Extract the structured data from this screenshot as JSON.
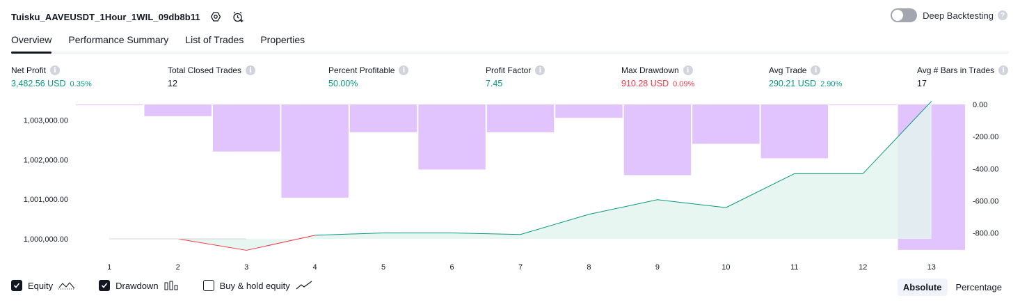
{
  "header": {
    "title": "Tuisku_AAVEUSDT_1Hour_1WIL_09db8b11",
    "settings_icon": "hexagon-gear-icon",
    "alert_icon": "alarm-clock-plus-icon"
  },
  "deep_backtesting": {
    "label": "Deep Backtesting",
    "enabled": false
  },
  "tabs": [
    {
      "label": "Overview",
      "active": true
    },
    {
      "label": "Performance Summary",
      "active": false
    },
    {
      "label": "List of Trades",
      "active": false
    },
    {
      "label": "Properties",
      "active": false
    }
  ],
  "stats": {
    "net_profit": {
      "label": "Net Profit",
      "value": "3,482.56 USD",
      "pct": "0.35%"
    },
    "total_closed_trades": {
      "label": "Total Closed Trades",
      "value": "12"
    },
    "percent_profitable": {
      "label": "Percent Profitable",
      "value": "50.00%"
    },
    "profit_factor": {
      "label": "Profit Factor",
      "value": "7.45"
    },
    "max_drawdown": {
      "label": "Max Drawdown",
      "value": "910.28 USD",
      "pct": "0.09%"
    },
    "avg_trade": {
      "label": "Avg Trade",
      "value": "290.21 USD",
      "pct": "2.90%"
    },
    "avg_bars": {
      "label": "Avg # Bars in Trades",
      "value": "17"
    }
  },
  "colors": {
    "profit": "#089981",
    "loss": "#f23645",
    "drawdown_bar": "#e1c3fd",
    "equity_fill": "#e3f5ef",
    "text": "#131722"
  },
  "chart_data": {
    "type": "line+bar",
    "x": [
      "1",
      "2",
      "3",
      "4",
      "5",
      "6",
      "7",
      "8",
      "9",
      "10",
      "11",
      "12",
      "13"
    ],
    "equity_ylim": [
      999700,
      1003400
    ],
    "equity_yticks": [
      "1,000,000.00",
      "1,001,000.00",
      "1,002,000.00",
      "1,003,000.00"
    ],
    "drawdown_ylim": [
      -910,
      0
    ],
    "drawdown_yticks": [
      "0.00",
      "-200.00",
      "-400.00",
      "-600.00",
      "-800.00"
    ],
    "series": [
      {
        "name": "Equity",
        "values": [
          1000000,
          1000000,
          999710,
          1000090,
          1000150,
          1000150,
          1000110,
          1000620,
          1000990,
          1000790,
          1001650,
          1001650,
          1003480
        ]
      },
      {
        "name": "Drawdown",
        "values": [
          -5,
          -73,
          -293,
          -580,
          -173,
          -405,
          -173,
          -83,
          -440,
          -245,
          -335,
          -5,
          -905
        ]
      }
    ]
  },
  "legend": [
    {
      "label": "Equity",
      "checked": true,
      "icon": "equity-line-icon"
    },
    {
      "label": "Drawdown",
      "checked": true,
      "icon": "drawdown-bars-icon"
    },
    {
      "label": "Buy & hold equity",
      "checked": false,
      "icon": "buyhold-line-icon"
    }
  ],
  "mode": {
    "absolute": "Absolute",
    "percentage": "Percentage"
  }
}
